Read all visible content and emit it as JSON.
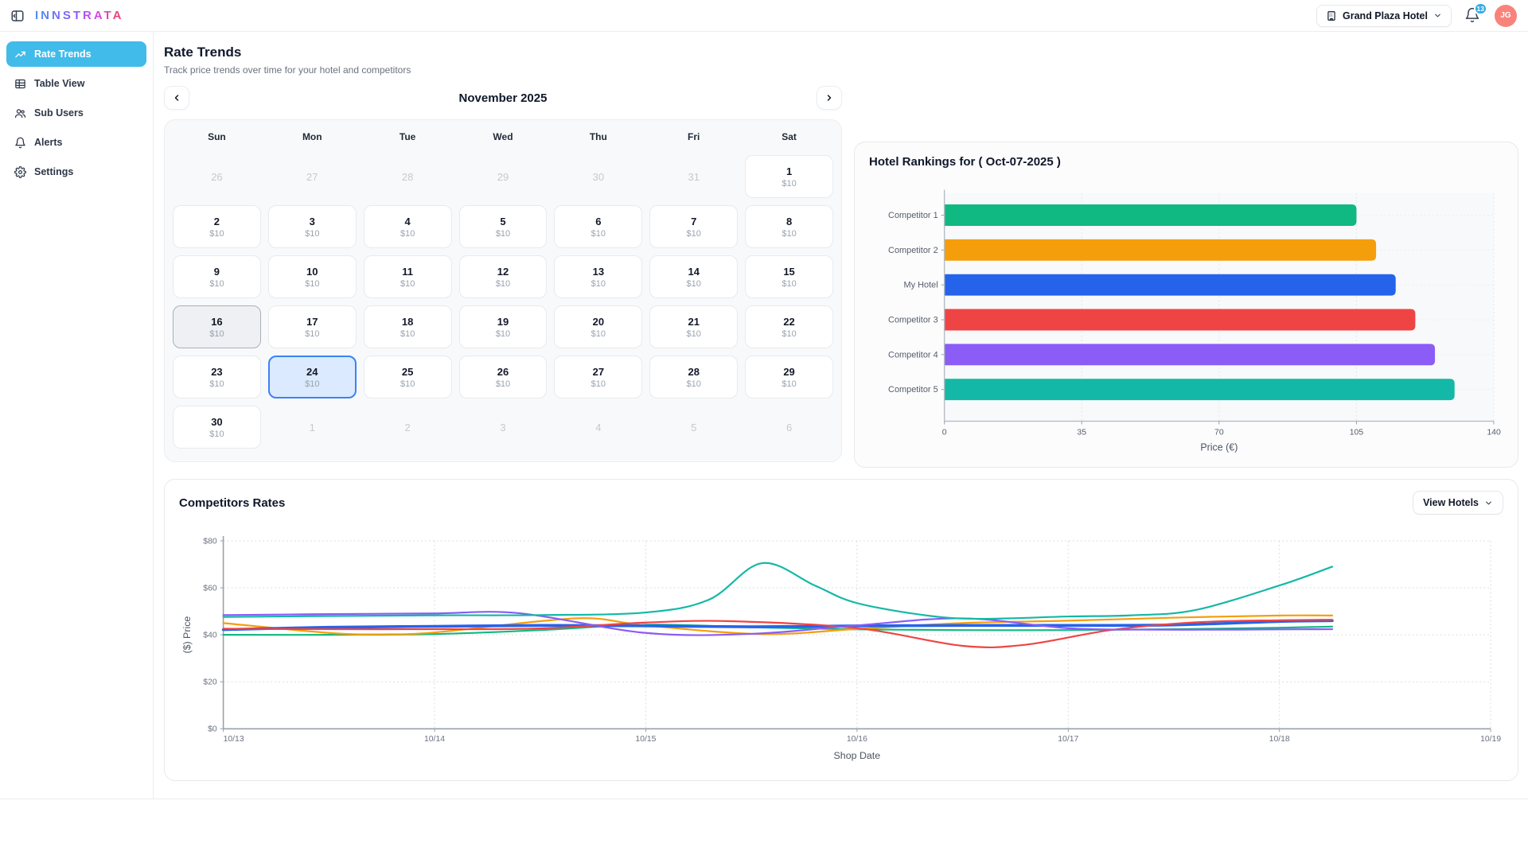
{
  "header": {
    "brand": "INNSTRATA",
    "hotel_selector": "Grand Plaza Hotel",
    "notification_count": "13",
    "avatar_initials": "JG"
  },
  "sidebar": {
    "items": [
      {
        "label": "Rate Trends",
        "icon": "trending-up-icon",
        "active": true
      },
      {
        "label": "Table View",
        "icon": "table-icon",
        "active": false
      },
      {
        "label": "Sub Users",
        "icon": "users-icon",
        "active": false
      },
      {
        "label": "Alerts",
        "icon": "bell-icon",
        "active": false
      },
      {
        "label": "Settings",
        "icon": "gear-icon",
        "active": false
      }
    ]
  },
  "page": {
    "title": "Rate Trends",
    "subtitle": "Track price trends over time for your hotel and competitors"
  },
  "calendar": {
    "month_title": "November 2025",
    "weekdays": [
      "Sun",
      "Mon",
      "Tue",
      "Wed",
      "Thu",
      "Fri",
      "Sat"
    ],
    "weeks": [
      [
        {
          "day": "26",
          "state": "adjacent"
        },
        {
          "day": "27",
          "state": "adjacent"
        },
        {
          "day": "28",
          "state": "adjacent"
        },
        {
          "day": "29",
          "state": "adjacent"
        },
        {
          "day": "30",
          "state": "adjacent"
        },
        {
          "day": "31",
          "state": "adjacent"
        },
        {
          "day": "1",
          "price": "$10",
          "state": "normal"
        }
      ],
      [
        {
          "day": "2",
          "price": "$10",
          "state": "normal"
        },
        {
          "day": "3",
          "price": "$10",
          "state": "normal"
        },
        {
          "day": "4",
          "price": "$10",
          "state": "normal"
        },
        {
          "day": "5",
          "price": "$10",
          "state": "normal"
        },
        {
          "day": "6",
          "price": "$10",
          "state": "normal"
        },
        {
          "day": "7",
          "price": "$10",
          "state": "normal"
        },
        {
          "day": "8",
          "price": "$10",
          "state": "normal"
        }
      ],
      [
        {
          "day": "9",
          "price": "$10",
          "state": "normal"
        },
        {
          "day": "10",
          "price": "$10",
          "state": "normal"
        },
        {
          "day": "11",
          "price": "$10",
          "state": "normal"
        },
        {
          "day": "12",
          "price": "$10",
          "state": "normal"
        },
        {
          "day": "13",
          "price": "$10",
          "state": "normal"
        },
        {
          "day": "14",
          "price": "$10",
          "state": "normal"
        },
        {
          "day": "15",
          "price": "$10",
          "state": "normal"
        }
      ],
      [
        {
          "day": "16",
          "price": "$10",
          "state": "today"
        },
        {
          "day": "17",
          "price": "$10",
          "state": "normal"
        },
        {
          "day": "18",
          "price": "$10",
          "state": "normal"
        },
        {
          "day": "19",
          "price": "$10",
          "state": "normal"
        },
        {
          "day": "20",
          "price": "$10",
          "state": "normal"
        },
        {
          "day": "21",
          "price": "$10",
          "state": "normal"
        },
        {
          "day": "22",
          "price": "$10",
          "state": "normal"
        }
      ],
      [
        {
          "day": "23",
          "price": "$10",
          "state": "normal"
        },
        {
          "day": "24",
          "price": "$10",
          "state": "selected"
        },
        {
          "day": "25",
          "price": "$10",
          "state": "normal"
        },
        {
          "day": "26",
          "price": "$10",
          "state": "normal"
        },
        {
          "day": "27",
          "price": "$10",
          "state": "normal"
        },
        {
          "day": "28",
          "price": "$10",
          "state": "normal"
        },
        {
          "day": "29",
          "price": "$10",
          "state": "normal"
        }
      ],
      [
        {
          "day": "30",
          "price": "$10",
          "state": "normal"
        },
        {
          "day": "1",
          "state": "adjacent"
        },
        {
          "day": "2",
          "state": "adjacent"
        },
        {
          "day": "3",
          "state": "adjacent"
        },
        {
          "day": "4",
          "state": "adjacent"
        },
        {
          "day": "5",
          "state": "adjacent"
        },
        {
          "day": "6",
          "state": "adjacent"
        }
      ]
    ]
  },
  "competitors": {
    "view_hotels_label": "View Hotels"
  },
  "colors": {
    "green": "#10b981",
    "orange": "#f59e0b",
    "blue": "#2563eb",
    "red": "#ef4444",
    "purple": "#8b5cf6",
    "teal": "#14b8a6",
    "accent_sky": "#41bbe9",
    "selected_day_border": "#3b82f6",
    "selected_day_bg": "#dbeafe"
  },
  "chart_data": [
    {
      "type": "bar",
      "orientation": "horizontal",
      "title": "Hotel Rankings for ( Oct-07-2025 )",
      "categories": [
        "Competitor 1",
        "Competitor 2",
        "My Hotel",
        "Competitor 3",
        "Competitor 4",
        "Competitor 5"
      ],
      "values": [
        105,
        110,
        115,
        120,
        125,
        130
      ],
      "bar_colors": [
        "#10b981",
        "#f59e0b",
        "#2563eb",
        "#ef4444",
        "#8b5cf6",
        "#14b8a6"
      ],
      "xlabel": "Price (€)",
      "xticks": [
        0,
        35,
        70,
        105,
        140
      ],
      "xlim": [
        0,
        140
      ],
      "grid": "dotted"
    },
    {
      "type": "line",
      "title": "Competitors Rates",
      "xlabel": "Shop Date",
      "ylabel": "($) Price",
      "xticklabels": [
        "10/13",
        "10/14",
        "10/15",
        "10/16",
        "10/17",
        "10/18",
        "10/19"
      ],
      "yticks": [
        0,
        20,
        40,
        60,
        80
      ],
      "ytick_prefix": "$",
      "ylim": [
        0,
        80
      ],
      "grid": "dotted",
      "legend": "none",
      "series": [
        {
          "name": "Competitor 1",
          "color": "#10b981",
          "width": 2.2,
          "points": [
            [
              0,
              40
            ],
            [
              0.5,
              40
            ],
            [
              1,
              40.3
            ],
            [
              1.5,
              42
            ],
            [
              2,
              44.3
            ],
            [
              2.5,
              43.2
            ],
            [
              3,
              42.3
            ],
            [
              3.5,
              42
            ],
            [
              4,
              42
            ],
            [
              4.5,
              42.4
            ],
            [
              5,
              43
            ],
            [
              5.25,
              43.5
            ]
          ]
        },
        {
          "name": "Competitor 2",
          "color": "#f59e0b",
          "width": 2.2,
          "points": [
            [
              0,
              45
            ],
            [
              0.5,
              40.8
            ],
            [
              0.75,
              40.2
            ],
            [
              1,
              41
            ],
            [
              1.5,
              45.8
            ],
            [
              1.75,
              47
            ],
            [
              2,
              44
            ],
            [
              2.55,
              40.3
            ],
            [
              3,
              42.5
            ],
            [
              3.5,
              45
            ],
            [
              4,
              46
            ],
            [
              4.5,
              47.3
            ],
            [
              5,
              48.2
            ],
            [
              5.25,
              48.2
            ]
          ]
        },
        {
          "name": "My Hotel",
          "color": "#2563eb",
          "width": 3.6,
          "points": [
            [
              0,
              42.2
            ],
            [
              0.5,
              43.2
            ],
            [
              1,
              43.6
            ],
            [
              1.5,
              44
            ],
            [
              2,
              43.8
            ],
            [
              2.5,
              43.4
            ],
            [
              3,
              43.8
            ],
            [
              3.5,
              44
            ],
            [
              4,
              44
            ],
            [
              4.5,
              44.2
            ],
            [
              5,
              45.7
            ],
            [
              5.25,
              46
            ]
          ]
        },
        {
          "name": "Competitor 3",
          "color": "#ef4444",
          "width": 2.2,
          "points": [
            [
              0,
              42.6
            ],
            [
              0.5,
              42.4
            ],
            [
              1,
              42.4
            ],
            [
              1.5,
              42.7
            ],
            [
              2,
              45.2
            ],
            [
              2.4,
              45.8
            ],
            [
              3,
              42.8
            ],
            [
              3.5,
              35.3
            ],
            [
              3.8,
              35.8
            ],
            [
              4.2,
              42
            ],
            [
              4.6,
              45.3
            ],
            [
              5,
              46.2
            ],
            [
              5.25,
              46.4
            ]
          ]
        },
        {
          "name": "Competitor 4",
          "color": "#8b5cf6",
          "width": 2.2,
          "points": [
            [
              0,
              48.4
            ],
            [
              0.5,
              48.8
            ],
            [
              1,
              49.1
            ],
            [
              1.4,
              49.2
            ],
            [
              2,
              40.8
            ],
            [
              2.5,
              40.4
            ],
            [
              3,
              44
            ],
            [
              3.5,
              47
            ],
            [
              4,
              42.8
            ],
            [
              4.4,
              42.2
            ],
            [
              4.8,
              42.2
            ],
            [
              5,
              42.3
            ],
            [
              5.25,
              42.4
            ]
          ]
        },
        {
          "name": "Competitor 5",
          "color": "#14b8a6",
          "width": 2.2,
          "points": [
            [
              0,
              47.6
            ],
            [
              0.5,
              48
            ],
            [
              1,
              48.3
            ],
            [
              1.5,
              48.4
            ],
            [
              2,
              49.5
            ],
            [
              2.3,
              55
            ],
            [
              2.55,
              70.5
            ],
            [
              2.8,
              61
            ],
            [
              3,
              53.5
            ],
            [
              3.35,
              48
            ],
            [
              3.6,
              46.8
            ],
            [
              4,
              47.8
            ],
            [
              4.3,
              48.3
            ],
            [
              4.6,
              50.5
            ],
            [
              5,
              61
            ],
            [
              5.25,
              69
            ]
          ]
        }
      ]
    }
  ]
}
